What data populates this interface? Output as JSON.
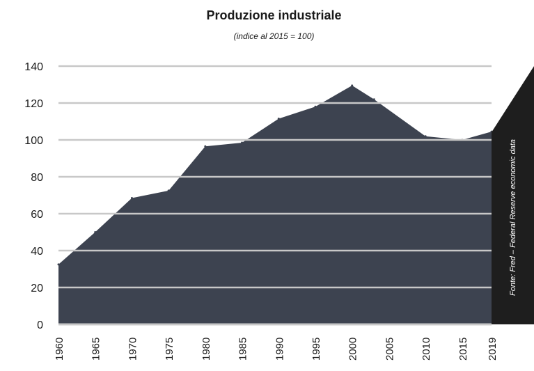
{
  "chart_data": {
    "type": "area",
    "title": "Produzione industriale",
    "subtitle": "(indice al 2015 = 100)",
    "source": "Fonte: Fred – Federal Reserve economic data",
    "xlabel": "",
    "ylabel": "",
    "ylim": [
      0,
      140
    ],
    "yticks": [
      0,
      20,
      40,
      60,
      80,
      100,
      120,
      140
    ],
    "xticks": [
      1960,
      1965,
      1970,
      1975,
      1980,
      1985,
      1990,
      1995,
      2000,
      2005,
      2010,
      2015,
      2019
    ],
    "grid": true,
    "x": [
      1960,
      1965,
      1970,
      1975,
      1980,
      1985,
      1990,
      1995,
      2000,
      2003,
      2010,
      2015,
      2019
    ],
    "values": [
      32.5,
      50,
      68.5,
      72.5,
      96.5,
      98.5,
      111.5,
      118,
      129.5,
      122,
      102,
      100,
      104.5
    ],
    "colors": {
      "area": "#3d4350",
      "grid": "#c8c8c8",
      "panel": "#1e1e1e"
    }
  }
}
